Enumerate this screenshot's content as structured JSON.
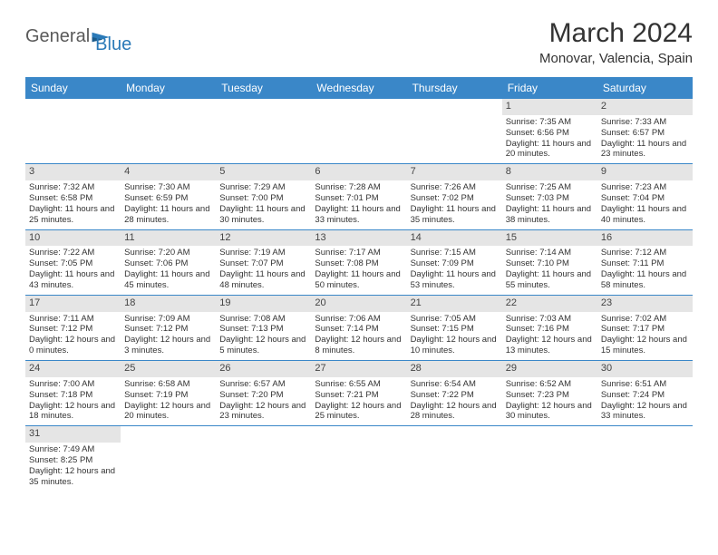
{
  "logo": {
    "part1": "General",
    "part2": "Blue"
  },
  "title": "March 2024",
  "location": "Monovar, Valencia, Spain",
  "colors": {
    "header_bg": "#3a87c8",
    "header_text": "#ffffff",
    "daynum_bg": "#e5e5e5",
    "week_border": "#3a87c8",
    "logo_grey": "#5a5a5a",
    "logo_blue": "#2b7ab8"
  },
  "dayNames": [
    "Sunday",
    "Monday",
    "Tuesday",
    "Wednesday",
    "Thursday",
    "Friday",
    "Saturday"
  ],
  "weeks": [
    [
      null,
      null,
      null,
      null,
      null,
      {
        "n": "1",
        "sunrise": "Sunrise: 7:35 AM",
        "sunset": "Sunset: 6:56 PM",
        "daylight": "Daylight: 11 hours and 20 minutes."
      },
      {
        "n": "2",
        "sunrise": "Sunrise: 7:33 AM",
        "sunset": "Sunset: 6:57 PM",
        "daylight": "Daylight: 11 hours and 23 minutes."
      }
    ],
    [
      {
        "n": "3",
        "sunrise": "Sunrise: 7:32 AM",
        "sunset": "Sunset: 6:58 PM",
        "daylight": "Daylight: 11 hours and 25 minutes."
      },
      {
        "n": "4",
        "sunrise": "Sunrise: 7:30 AM",
        "sunset": "Sunset: 6:59 PM",
        "daylight": "Daylight: 11 hours and 28 minutes."
      },
      {
        "n": "5",
        "sunrise": "Sunrise: 7:29 AM",
        "sunset": "Sunset: 7:00 PM",
        "daylight": "Daylight: 11 hours and 30 minutes."
      },
      {
        "n": "6",
        "sunrise": "Sunrise: 7:28 AM",
        "sunset": "Sunset: 7:01 PM",
        "daylight": "Daylight: 11 hours and 33 minutes."
      },
      {
        "n": "7",
        "sunrise": "Sunrise: 7:26 AM",
        "sunset": "Sunset: 7:02 PM",
        "daylight": "Daylight: 11 hours and 35 minutes."
      },
      {
        "n": "8",
        "sunrise": "Sunrise: 7:25 AM",
        "sunset": "Sunset: 7:03 PM",
        "daylight": "Daylight: 11 hours and 38 minutes."
      },
      {
        "n": "9",
        "sunrise": "Sunrise: 7:23 AM",
        "sunset": "Sunset: 7:04 PM",
        "daylight": "Daylight: 11 hours and 40 minutes."
      }
    ],
    [
      {
        "n": "10",
        "sunrise": "Sunrise: 7:22 AM",
        "sunset": "Sunset: 7:05 PM",
        "daylight": "Daylight: 11 hours and 43 minutes."
      },
      {
        "n": "11",
        "sunrise": "Sunrise: 7:20 AM",
        "sunset": "Sunset: 7:06 PM",
        "daylight": "Daylight: 11 hours and 45 minutes."
      },
      {
        "n": "12",
        "sunrise": "Sunrise: 7:19 AM",
        "sunset": "Sunset: 7:07 PM",
        "daylight": "Daylight: 11 hours and 48 minutes."
      },
      {
        "n": "13",
        "sunrise": "Sunrise: 7:17 AM",
        "sunset": "Sunset: 7:08 PM",
        "daylight": "Daylight: 11 hours and 50 minutes."
      },
      {
        "n": "14",
        "sunrise": "Sunrise: 7:15 AM",
        "sunset": "Sunset: 7:09 PM",
        "daylight": "Daylight: 11 hours and 53 minutes."
      },
      {
        "n": "15",
        "sunrise": "Sunrise: 7:14 AM",
        "sunset": "Sunset: 7:10 PM",
        "daylight": "Daylight: 11 hours and 55 minutes."
      },
      {
        "n": "16",
        "sunrise": "Sunrise: 7:12 AM",
        "sunset": "Sunset: 7:11 PM",
        "daylight": "Daylight: 11 hours and 58 minutes."
      }
    ],
    [
      {
        "n": "17",
        "sunrise": "Sunrise: 7:11 AM",
        "sunset": "Sunset: 7:12 PM",
        "daylight": "Daylight: 12 hours and 0 minutes."
      },
      {
        "n": "18",
        "sunrise": "Sunrise: 7:09 AM",
        "sunset": "Sunset: 7:12 PM",
        "daylight": "Daylight: 12 hours and 3 minutes."
      },
      {
        "n": "19",
        "sunrise": "Sunrise: 7:08 AM",
        "sunset": "Sunset: 7:13 PM",
        "daylight": "Daylight: 12 hours and 5 minutes."
      },
      {
        "n": "20",
        "sunrise": "Sunrise: 7:06 AM",
        "sunset": "Sunset: 7:14 PM",
        "daylight": "Daylight: 12 hours and 8 minutes."
      },
      {
        "n": "21",
        "sunrise": "Sunrise: 7:05 AM",
        "sunset": "Sunset: 7:15 PM",
        "daylight": "Daylight: 12 hours and 10 minutes."
      },
      {
        "n": "22",
        "sunrise": "Sunrise: 7:03 AM",
        "sunset": "Sunset: 7:16 PM",
        "daylight": "Daylight: 12 hours and 13 minutes."
      },
      {
        "n": "23",
        "sunrise": "Sunrise: 7:02 AM",
        "sunset": "Sunset: 7:17 PM",
        "daylight": "Daylight: 12 hours and 15 minutes."
      }
    ],
    [
      {
        "n": "24",
        "sunrise": "Sunrise: 7:00 AM",
        "sunset": "Sunset: 7:18 PM",
        "daylight": "Daylight: 12 hours and 18 minutes."
      },
      {
        "n": "25",
        "sunrise": "Sunrise: 6:58 AM",
        "sunset": "Sunset: 7:19 PM",
        "daylight": "Daylight: 12 hours and 20 minutes."
      },
      {
        "n": "26",
        "sunrise": "Sunrise: 6:57 AM",
        "sunset": "Sunset: 7:20 PM",
        "daylight": "Daylight: 12 hours and 23 minutes."
      },
      {
        "n": "27",
        "sunrise": "Sunrise: 6:55 AM",
        "sunset": "Sunset: 7:21 PM",
        "daylight": "Daylight: 12 hours and 25 minutes."
      },
      {
        "n": "28",
        "sunrise": "Sunrise: 6:54 AM",
        "sunset": "Sunset: 7:22 PM",
        "daylight": "Daylight: 12 hours and 28 minutes."
      },
      {
        "n": "29",
        "sunrise": "Sunrise: 6:52 AM",
        "sunset": "Sunset: 7:23 PM",
        "daylight": "Daylight: 12 hours and 30 minutes."
      },
      {
        "n": "30",
        "sunrise": "Sunrise: 6:51 AM",
        "sunset": "Sunset: 7:24 PM",
        "daylight": "Daylight: 12 hours and 33 minutes."
      }
    ],
    [
      {
        "n": "31",
        "sunrise": "Sunrise: 7:49 AM",
        "sunset": "Sunset: 8:25 PM",
        "daylight": "Daylight: 12 hours and 35 minutes."
      },
      null,
      null,
      null,
      null,
      null,
      null
    ]
  ]
}
